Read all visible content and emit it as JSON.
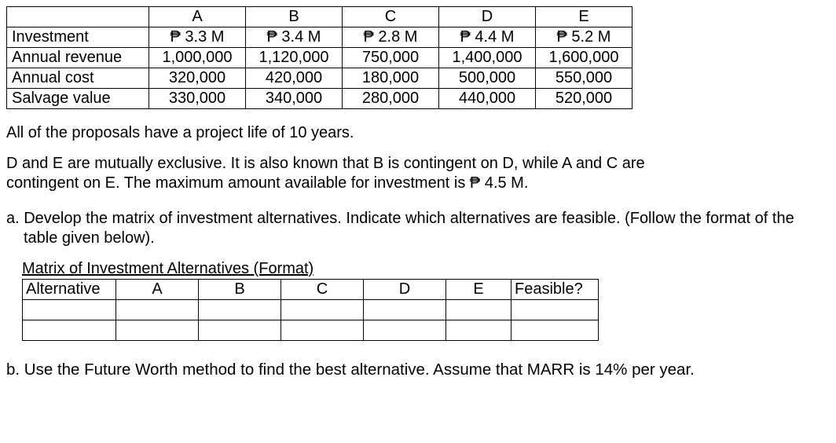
{
  "data_table": {
    "row_labels": [
      "",
      "Investment",
      "Annual revenue",
      "Annual cost",
      "Salvage value"
    ],
    "cols": [
      "A",
      "B",
      "C",
      "D",
      "E"
    ],
    "rows": [
      [
        "₱ 3.3 M",
        "₱ 3.4 M",
        "₱ 2.8 M",
        "₱ 4.4 M",
        "₱ 5.2 M"
      ],
      [
        "1,000,000",
        "1,120,000",
        "750,000",
        "1,400,000",
        "1,600,000"
      ],
      [
        "320,000",
        "420,000",
        "180,000",
        "500,000",
        "550,000"
      ],
      [
        "330,000",
        "340,000",
        "280,000",
        "440,000",
        "520,000"
      ]
    ]
  },
  "text": {
    "life": "All of the proposals have a project life of 10 years.",
    "constraints": "D and E are mutually exclusive.  It is also known that B is contingent on D, while A and C are contingent on E.   The maximum amount available for investment is ₱ 4.5 M.",
    "qa": "a. Develop the matrix of investment alternatives.  Indicate which alternatives are feasible. (Follow the format of the table given below).",
    "matrix_title": "Matrix of Investment Alternatives (Format)",
    "qb": "b. Use the Future Worth method to find the best alternative. Assume that MARR is 14% per year."
  },
  "matrix_table": {
    "headers": [
      "Alternative",
      "A",
      "B",
      "C",
      "D",
      "E",
      "Feasible?"
    ],
    "blank_rows": 2
  },
  "style": {
    "font_family": "Arial",
    "font_size_pt": 15,
    "border_color": "#000000",
    "text_color": "#000000",
    "background": "#ffffff"
  }
}
